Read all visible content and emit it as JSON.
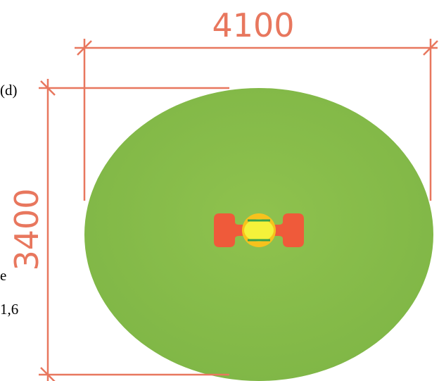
{
  "dimensions": {
    "width": "4100",
    "height": "3400"
  },
  "side_text": {
    "label": "(d)",
    "line1": "e",
    "line2": "1,6"
  }
}
